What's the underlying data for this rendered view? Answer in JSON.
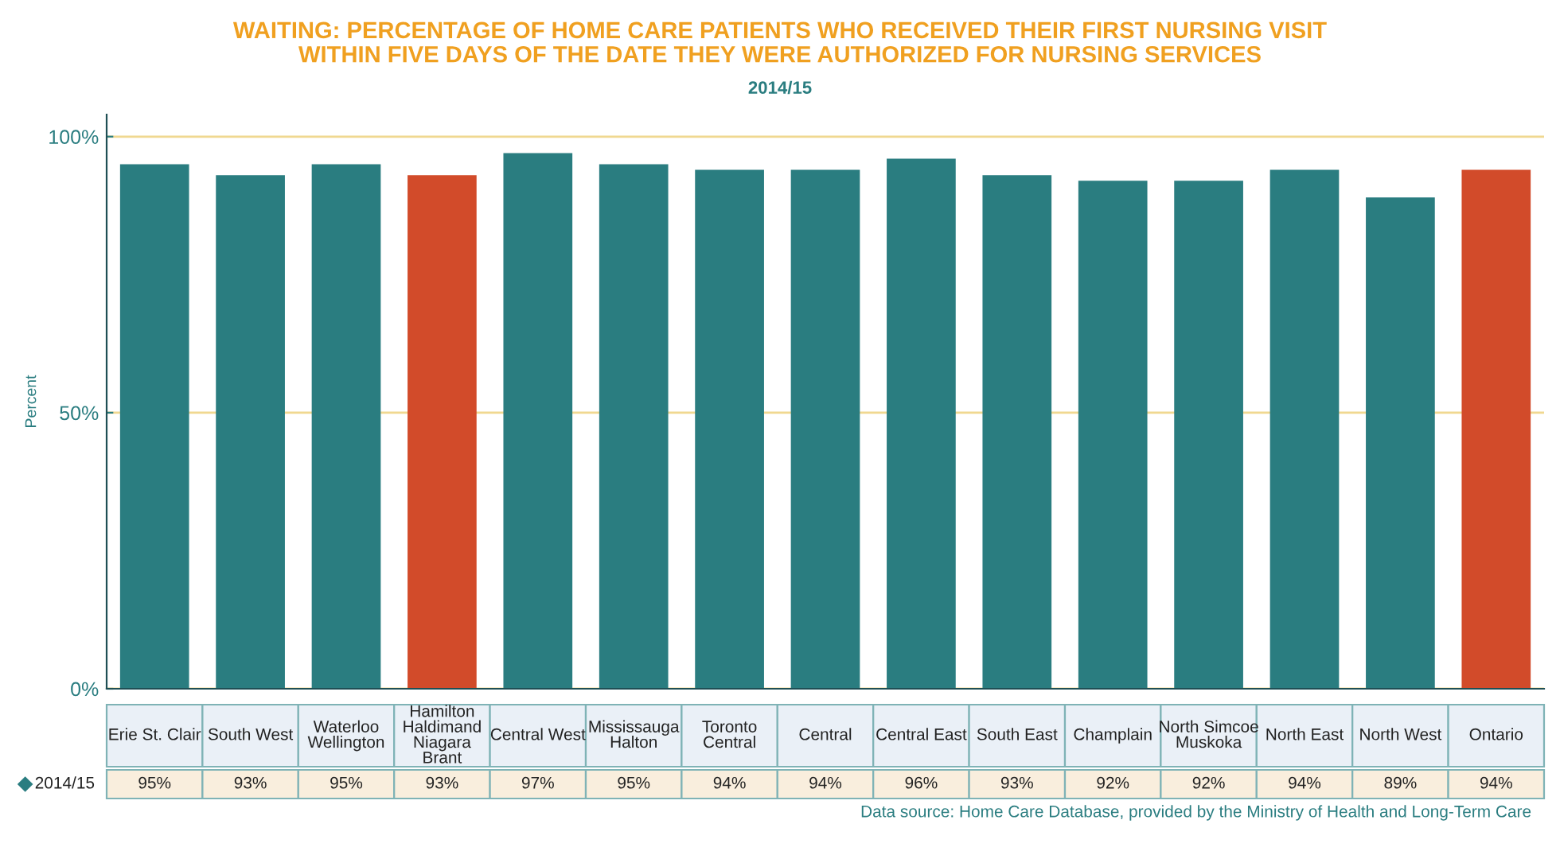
{
  "chart_data": {
    "type": "bar",
    "title": "WAITING: PERCENTAGE OF HOME CARE PATIENTS WHO RECEIVED THEIR FIRST NURSING VISIT\nWITHIN FIVE DAYS OF THE DATE THEY WERE AUTHORIZED FOR NURSING SERVICES",
    "subtitle": "2014/15",
    "ylabel": "Percent",
    "categories": [
      "Erie St. Clair",
      "South West",
      "Waterloo\nWellington",
      "Hamilton\nHaldimand\nNiagara\nBrant",
      "Central West",
      "Mississauga\nHalton",
      "Toronto\nCentral",
      "Central",
      "Central East",
      "South East",
      "Champlain",
      "North Simcoe\nMuskoka",
      "North East",
      "North West",
      "Ontario"
    ],
    "series": [
      {
        "name": "2014/15",
        "color": "#2a7d80",
        "colors": [
          "#2a7d80",
          "#2a7d80",
          "#2a7d80",
          "#d24b2a",
          "#2a7d80",
          "#2a7d80",
          "#2a7d80",
          "#2a7d80",
          "#2a7d80",
          "#2a7d80",
          "#2a7d80",
          "#2a7d80",
          "#2a7d80",
          "#2a7d80",
          "#d24b2a"
        ],
        "values": [
          95,
          93,
          95,
          93,
          97,
          95,
          94,
          94,
          96,
          93,
          92,
          92,
          94,
          89,
          94
        ],
        "value_labels": [
          "95%",
          "93%",
          "95%",
          "93%",
          "97%",
          "95%",
          "94%",
          "94%",
          "96%",
          "93%",
          "92%",
          "92%",
          "94%",
          "89%",
          "94%"
        ]
      }
    ],
    "ylim": [
      0,
      104
    ],
    "yticks": [
      {
        "value": 0,
        "label": "0%"
      },
      {
        "value": 50,
        "label": "50%"
      },
      {
        "value": 100,
        "label": "100%"
      }
    ],
    "grid": "y",
    "marker": "diamond",
    "annotations": [
      "Data source: Home Care Database, provided by the Ministry of Health and Long-Term Care"
    ]
  }
}
